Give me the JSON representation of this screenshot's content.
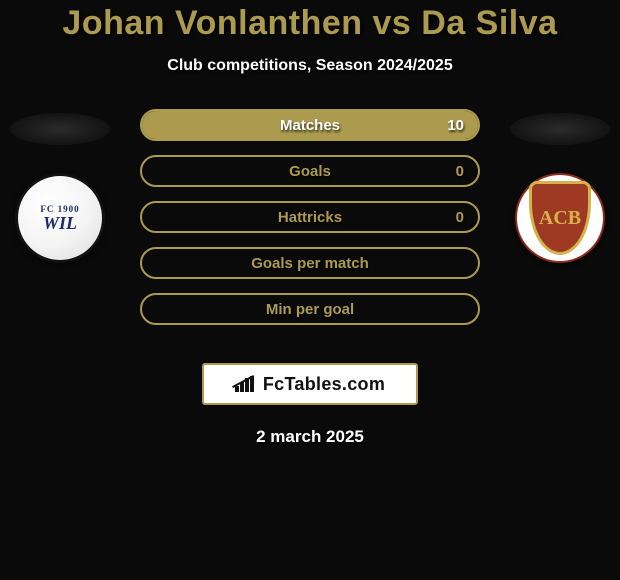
{
  "title": "Johan Vonlanthen vs Da Silva",
  "subtitle": "Club competitions, Season 2024/2025",
  "accent_color": "#ac9b4f",
  "text_color_light": "#ffffff",
  "background_color": "#0a0a0a",
  "left_team_label": "FC WIL",
  "left_team_small": "FC 1900",
  "right_team_label": "ACB",
  "stats": [
    {
      "label": "Matches",
      "right_value": "10",
      "right_fill_pct": 100
    },
    {
      "label": "Goals",
      "right_value": "0",
      "right_fill_pct": 0
    },
    {
      "label": "Hattricks",
      "right_value": "0",
      "right_fill_pct": 0
    },
    {
      "label": "Goals per match",
      "right_value": "",
      "right_fill_pct": 0
    },
    {
      "label": "Min per goal",
      "right_value": "",
      "right_fill_pct": 0
    }
  ],
  "site_name": "FcTables.com",
  "date_text": "2 march 2025"
}
